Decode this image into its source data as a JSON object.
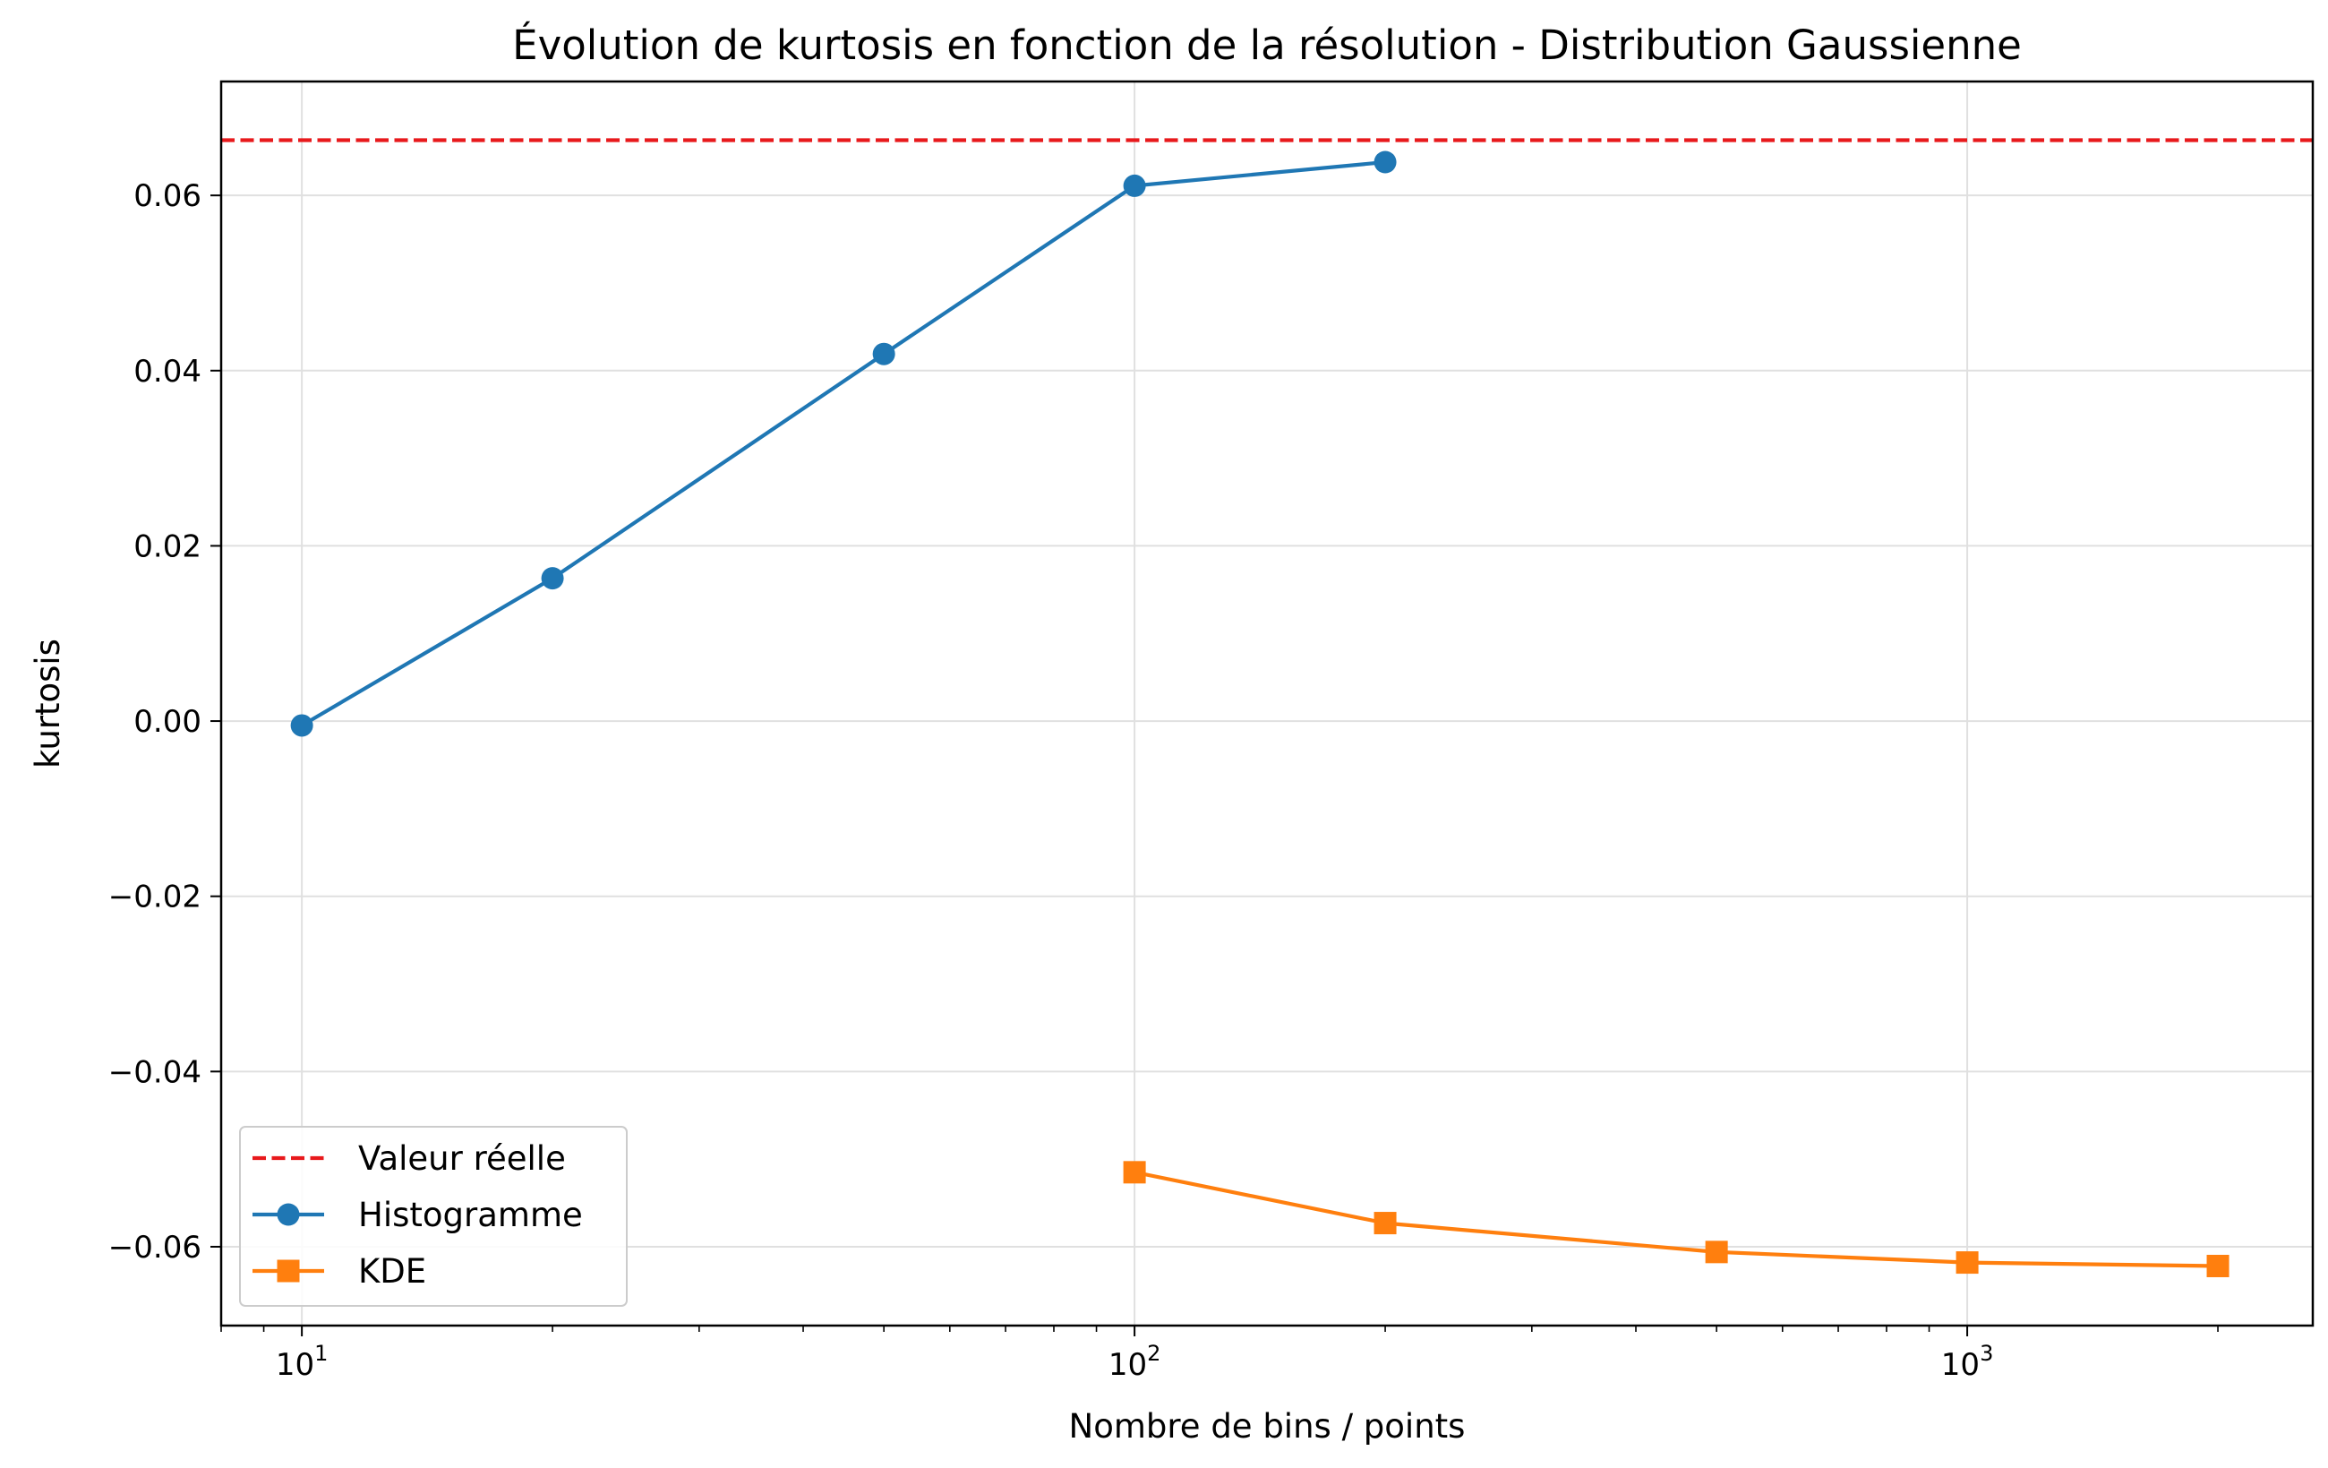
{
  "chart_data": {
    "type": "line",
    "title": "Évolution de kurtosis en fonction de la résolution - Distribution Gaussienne",
    "xlabel": "Nombre de bins / points",
    "ylabel": "kurtosis",
    "xscale": "log",
    "xlim": [
      8,
      2600
    ],
    "ylim": [
      -0.069,
      0.073
    ],
    "grid": true,
    "legend_position": "lower-left",
    "x_ticks": [
      {
        "value": 10,
        "base": "10",
        "exp": "1"
      },
      {
        "value": 100,
        "base": "10",
        "exp": "2"
      },
      {
        "value": 1000,
        "base": "10",
        "exp": "3"
      }
    ],
    "y_ticks": [
      {
        "value": 0.06,
        "label": "0.06"
      },
      {
        "value": 0.04,
        "label": "0.04"
      },
      {
        "value": 0.02,
        "label": "0.02"
      },
      {
        "value": 0.0,
        "label": "0.00"
      },
      {
        "value": -0.02,
        "label": "−0.02"
      },
      {
        "value": -0.04,
        "label": "−0.04"
      },
      {
        "value": -0.06,
        "label": "−0.06"
      }
    ],
    "reference_line": {
      "name": "Valeur réelle",
      "y": 0.0663,
      "color": "#e8191c",
      "style": "dashed"
    },
    "series": [
      {
        "name": "Histogramme",
        "marker": "circle",
        "color": "#1f77b4",
        "x": [
          10,
          20,
          50,
          100,
          200
        ],
        "values": [
          -0.0005,
          0.0163,
          0.0419,
          0.0611,
          0.0638
        ]
      },
      {
        "name": "KDE",
        "marker": "square",
        "color": "#ff7f0e",
        "x": [
          100,
          200,
          500,
          1000,
          2000
        ],
        "values": [
          -0.0515,
          -0.0573,
          -0.0606,
          -0.0618,
          -0.0622
        ]
      }
    ]
  }
}
